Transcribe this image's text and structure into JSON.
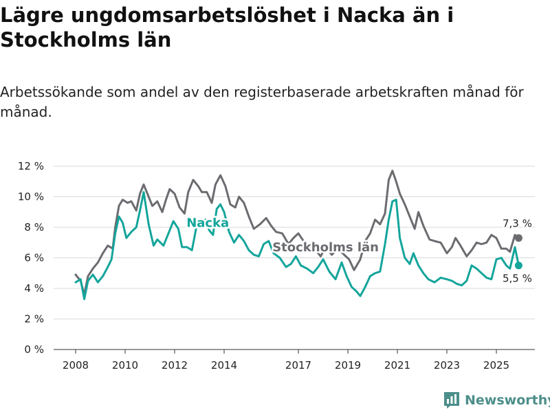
{
  "header": {
    "title": "Lägre ungdomsarbetslöshet i Nacka än i Stockholms län",
    "subtitle": "Arbetssökande som andel av den registerbaserade arbetskraften månad för månad."
  },
  "brand": {
    "name": "Newsworthy",
    "color": "#4c8e8a"
  },
  "chart_data": {
    "type": "line",
    "title": "Lägre ungdomsarbetslöshet i Nacka än i Stockholms län",
    "xlabel": "",
    "ylabel": "",
    "ylim": [
      0,
      12
    ],
    "xlim": [
      2007.5,
      2026.6
    ],
    "yticks": [
      0,
      2,
      4,
      6,
      8,
      10,
      12
    ],
    "ytick_labels": [
      "0 %",
      "2 %",
      "4 %",
      "6 %",
      "8 %",
      "10 %",
      "12 %"
    ],
    "xticks": [
      2008,
      2010,
      2012,
      2014,
      2017,
      2019,
      2021,
      2023,
      2025
    ],
    "xtick_labels": [
      "2008",
      "2010",
      "2012",
      "2014",
      "2017",
      "2019",
      "2021",
      "2023",
      "2025"
    ],
    "grid": true,
    "series": [
      {
        "name": "Stockholms län",
        "color": "#6b6b70",
        "label_position_year": 2018.1,
        "label_position_value": 6.7,
        "end_label": "7,3 %",
        "x": [
          2008.0,
          2008.2,
          2008.35,
          2008.5,
          2008.7,
          2008.9,
          2009.1,
          2009.3,
          2009.5,
          2009.6,
          2009.75,
          2009.9,
          2010.1,
          2010.25,
          2010.45,
          2010.6,
          2010.75,
          2010.9,
          2011.1,
          2011.3,
          2011.5,
          2011.65,
          2011.8,
          2012.0,
          2012.2,
          2012.4,
          2012.55,
          2012.75,
          2012.95,
          2013.1,
          2013.3,
          2013.5,
          2013.65,
          2013.85,
          2014.05,
          2014.25,
          2014.45,
          2014.6,
          2014.8,
          2015.0,
          2015.2,
          2015.45,
          2015.7,
          2015.9,
          2016.1,
          2016.35,
          2016.6,
          2016.8,
          2017.0,
          2017.25,
          2017.5,
          2017.7,
          2017.9,
          2018.1,
          2018.35,
          2018.6,
          2018.85,
          2019.05,
          2019.25,
          2019.5,
          2019.7,
          2019.9,
          2020.1,
          2020.3,
          2020.5,
          2020.65,
          2020.8,
          2020.95,
          2021.1,
          2021.3,
          2021.5,
          2021.7,
          2021.85,
          2022.05,
          2022.3,
          2022.5,
          2022.75,
          2023.0,
          2023.2,
          2023.35,
          2023.55,
          2023.8,
          2024.0,
          2024.2,
          2024.4,
          2024.6,
          2024.8,
          2025.0,
          2025.2,
          2025.4,
          2025.55,
          2025.75,
          2025.9
        ],
        "values": [
          4.9,
          4.5,
          3.6,
          4.8,
          5.3,
          5.7,
          6.3,
          6.8,
          6.6,
          8.0,
          9.4,
          9.8,
          9.6,
          9.7,
          9.1,
          10.2,
          10.8,
          10.2,
          9.4,
          9.7,
          9.0,
          9.8,
          10.5,
          10.2,
          9.3,
          8.9,
          10.3,
          11.1,
          10.7,
          10.3,
          10.3,
          9.6,
          10.8,
          11.4,
          10.7,
          9.5,
          9.3,
          10.0,
          9.6,
          8.7,
          7.9,
          8.2,
          8.6,
          8.1,
          7.7,
          7.6,
          6.9,
          7.3,
          7.6,
          7.0,
          6.6,
          6.5,
          6.1,
          6.7,
          6.2,
          6.6,
          6.2,
          5.9,
          5.2,
          5.9,
          7.1,
          7.6,
          8.5,
          8.2,
          8.9,
          11.1,
          11.7,
          11.0,
          10.2,
          9.5,
          8.7,
          7.9,
          9.0,
          8.1,
          7.2,
          7.1,
          7.0,
          6.3,
          6.7,
          7.3,
          6.8,
          6.1,
          6.5,
          7.0,
          6.9,
          7.0,
          7.5,
          7.3,
          6.6,
          6.6,
          6.4,
          7.5,
          7.3
        ]
      },
      {
        "name": "Nacka",
        "color": "#14a59b",
        "label_position_year": 2014.2,
        "label_position_value": 8.3,
        "end_label": "5,5 %",
        "x": [
          2008.0,
          2008.2,
          2008.35,
          2008.5,
          2008.7,
          2008.9,
          2009.1,
          2009.3,
          2009.45,
          2009.6,
          2009.75,
          2009.9,
          2010.05,
          2010.25,
          2010.45,
          2010.6,
          2010.75,
          2010.95,
          2011.15,
          2011.3,
          2011.55,
          2011.75,
          2011.95,
          2012.15,
          2012.3,
          2012.5,
          2012.7,
          2012.9,
          2013.1,
          2013.25,
          2013.4,
          2013.55,
          2013.7,
          2013.85,
          2014.0,
          2014.2,
          2014.4,
          2014.6,
          2014.8,
          2015.0,
          2015.2,
          2015.4,
          2015.6,
          2015.8,
          2016.0,
          2016.25,
          2016.5,
          2016.7,
          2016.9,
          2017.1,
          2017.35,
          2017.6,
          2017.8,
          2018.0,
          2018.25,
          2018.5,
          2018.75,
          2018.95,
          2019.15,
          2019.35,
          2019.5,
          2019.7,
          2019.9,
          2020.1,
          2020.3,
          2020.5,
          2020.65,
          2020.8,
          2020.95,
          2021.1,
          2021.3,
          2021.5,
          2021.65,
          2021.85,
          2022.05,
          2022.25,
          2022.5,
          2022.75,
          2023.0,
          2023.2,
          2023.4,
          2023.6,
          2023.8,
          2024.0,
          2024.2,
          2024.4,
          2024.6,
          2024.8,
          2025.0,
          2025.2,
          2025.4,
          2025.55,
          2025.75,
          2025.9
        ],
        "values": [
          4.4,
          4.6,
          3.3,
          4.5,
          4.9,
          4.4,
          4.8,
          5.4,
          5.9,
          7.6,
          8.7,
          8.3,
          7.3,
          7.7,
          8.0,
          9.1,
          10.3,
          8.2,
          6.8,
          7.2,
          6.8,
          7.6,
          8.4,
          7.9,
          6.7,
          6.7,
          6.5,
          8.2,
          8.2,
          8.5,
          7.8,
          7.5,
          9.2,
          9.5,
          9.0,
          7.7,
          7.0,
          7.5,
          7.1,
          6.5,
          6.2,
          6.1,
          6.9,
          7.1,
          6.3,
          6.0,
          5.4,
          5.6,
          6.1,
          5.5,
          5.3,
          5.0,
          5.4,
          5.9,
          5.1,
          4.6,
          5.7,
          4.8,
          4.1,
          3.8,
          3.5,
          4.1,
          4.8,
          5.0,
          5.1,
          6.9,
          8.5,
          9.7,
          9.8,
          7.3,
          6.0,
          5.6,
          6.3,
          5.5,
          5.0,
          4.6,
          4.4,
          4.7,
          4.6,
          4.5,
          4.3,
          4.2,
          4.5,
          5.5,
          5.3,
          5.0,
          4.7,
          4.6,
          5.9,
          6.0,
          5.5,
          5.3,
          6.7,
          5.5
        ]
      }
    ]
  }
}
